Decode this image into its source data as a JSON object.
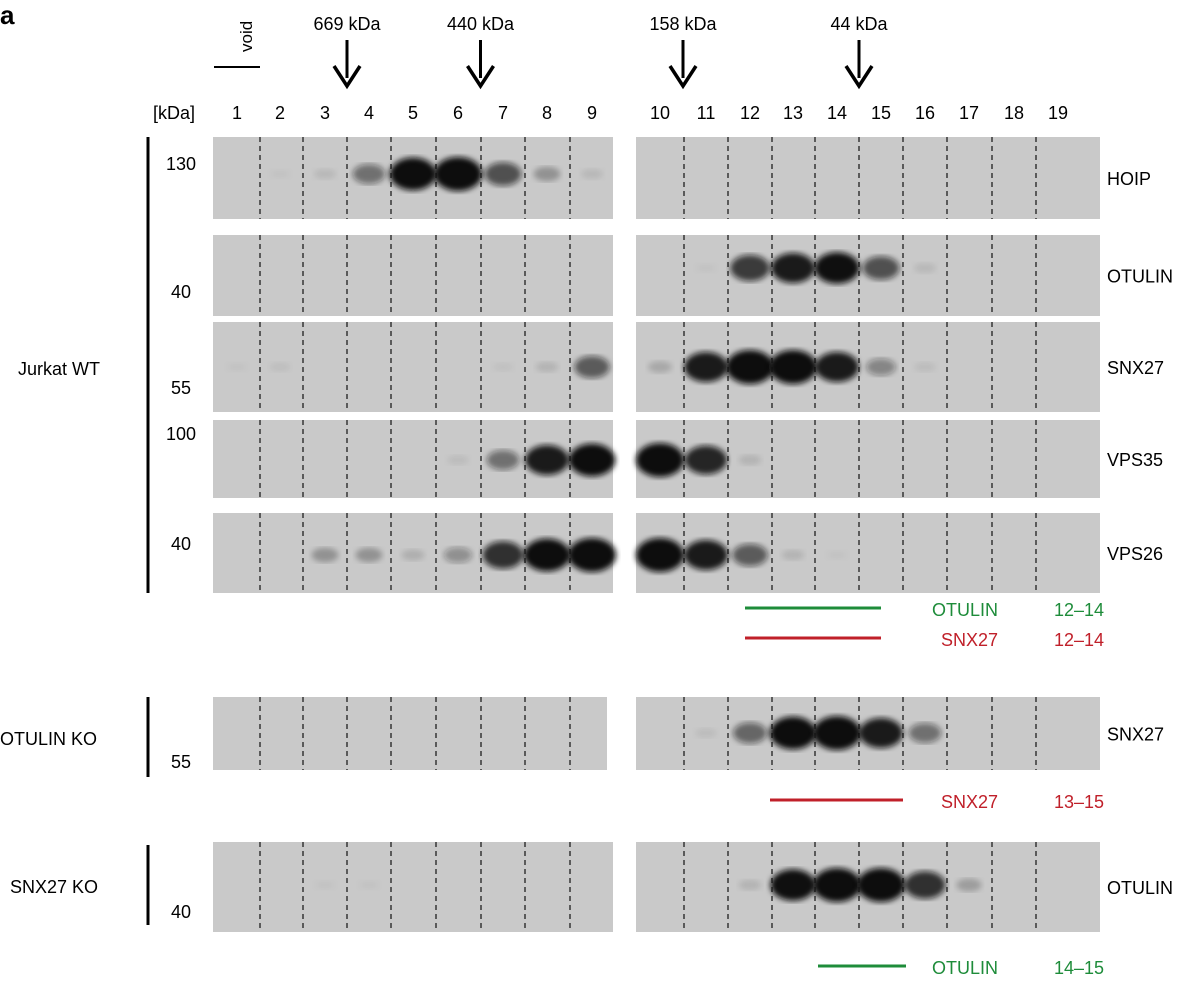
{
  "panel_label": "a",
  "void_label": "void",
  "markers": [
    {
      "label": "669 kDa",
      "lane": 3.5
    },
    {
      "label": "440 kDa",
      "lane": 6.5
    },
    {
      "label": "158 kDa",
      "lane": 10.5
    },
    {
      "label": "44 kDa",
      "lane": 14.5
    }
  ],
  "kda_header": "[kDa]",
  "lanes": [
    "1",
    "2",
    "3",
    "4",
    "5",
    "6",
    "7",
    "8",
    "9",
    "10",
    "11",
    "12",
    "13",
    "14",
    "15",
    "16",
    "17",
    "18",
    "19"
  ],
  "groups": [
    {
      "label": "Jurkat WT"
    },
    {
      "label": "OTULIN KO"
    },
    {
      "label": "SNX27 KO"
    }
  ],
  "blots": [
    {
      "protein": "HOIP",
      "mw": "130",
      "bands": [
        0,
        0.03,
        0.08,
        0.45,
        0.95,
        1,
        0.6,
        0.25,
        0.08,
        0,
        0,
        0,
        0,
        0,
        0,
        0,
        0,
        0,
        0
      ]
    },
    {
      "protein": "OTULIN",
      "mw": "40",
      "bands": [
        0,
        0,
        0,
        0,
        0,
        0,
        0,
        0,
        0,
        0,
        0.03,
        0.7,
        0.85,
        0.9,
        0.6,
        0.08,
        0,
        0,
        0
      ]
    },
    {
      "protein": "SNX27",
      "mw": "55",
      "bands": [
        0.03,
        0.05,
        0,
        0,
        0,
        0,
        0.04,
        0.1,
        0.55,
        0.15,
        0.85,
        1,
        1,
        0.85,
        0.35,
        0.06,
        0,
        0,
        0
      ]
    },
    {
      "protein": "VPS35",
      "mw": "100",
      "bands": [
        0,
        0,
        0,
        0,
        0,
        0.06,
        0.45,
        0.85,
        0.95,
        1,
        0.8,
        0.1,
        0,
        0,
        0,
        0,
        0,
        0,
        0
      ]
    },
    {
      "protein": "VPS26",
      "mw": "40",
      "bands": [
        0,
        0,
        0.25,
        0.25,
        0.12,
        0.3,
        0.75,
        0.95,
        1,
        1,
        0.85,
        0.55,
        0.1,
        0.03,
        0,
        0,
        0,
        0,
        0
      ]
    },
    {
      "protein": "SNX27",
      "mw": "55",
      "bands": [
        0,
        0,
        0,
        0,
        0,
        0,
        0,
        0,
        0,
        0,
        0.06,
        0.5,
        0.95,
        1,
        0.85,
        0.45,
        0,
        0,
        0
      ]
    },
    {
      "protein": "OTULIN",
      "mw": "40",
      "bands": [
        0,
        0,
        0.03,
        0.03,
        0,
        0,
        0,
        0,
        0,
        0,
        0,
        0.1,
        0.9,
        1,
        1,
        0.75,
        0.2,
        0,
        0
      ]
    }
  ],
  "peaks": [
    {
      "label": "OTULIN",
      "range": "12–14",
      "color": "#1e8c3a"
    },
    {
      "label": "SNX27",
      "range": "12–14",
      "color": "#c0202a"
    },
    {
      "label": "SNX27",
      "range": "13–15",
      "color": "#c0202a"
    },
    {
      "label": "OTULIN",
      "range": "14–15",
      "color": "#1e8c3a"
    }
  ]
}
